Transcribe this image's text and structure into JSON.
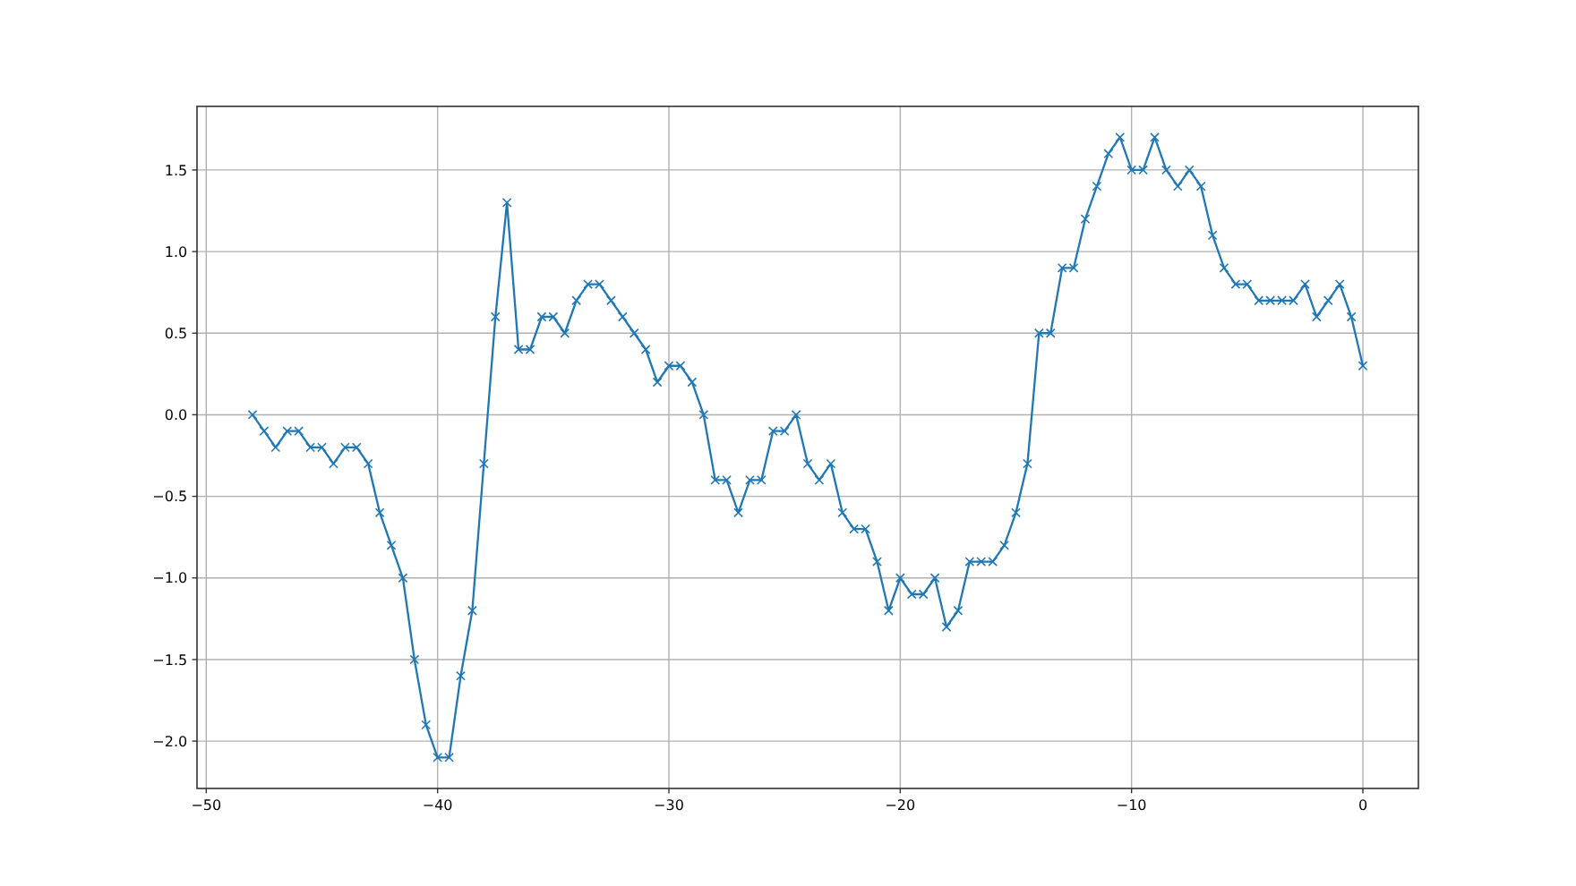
{
  "chart_data": {
    "type": "line",
    "x": [
      -48,
      -47.5,
      -47,
      -46.5,
      -46,
      -45.5,
      -45,
      -44.5,
      -44,
      -43.5,
      -43,
      -42.5,
      -42,
      -41.5,
      -41,
      -40.5,
      -40,
      -39.5,
      -39,
      -38.5,
      -38,
      -37.5,
      -37,
      -36.5,
      -36,
      -35.5,
      -35,
      -34.5,
      -34,
      -33.5,
      -33,
      -32.5,
      -32,
      -31.5,
      -31,
      -30.5,
      -30,
      -29.5,
      -29,
      -28.5,
      -28,
      -27.5,
      -27,
      -26.5,
      -26,
      -25.5,
      -25,
      -24.5,
      -24,
      -23.5,
      -23,
      -22.5,
      -22,
      -21.5,
      -21,
      -20.5,
      -20,
      -19.5,
      -19,
      -18.5,
      -18,
      -17.5,
      -17,
      -16.5,
      -16,
      -15.5,
      -15,
      -14.5,
      -14,
      -13.5,
      -13,
      -12.5,
      -12,
      -11.5,
      -11,
      -10.5,
      -10,
      -9.5,
      -9,
      -8.5,
      -8,
      -7.5,
      -7,
      -6.5,
      -6,
      -5.5,
      -5,
      -4.5,
      -4,
      -3.5,
      -3,
      -2.5,
      -2,
      -1.5,
      -1,
      -0.5,
      0
    ],
    "values": [
      0.0,
      -0.1,
      -0.2,
      -0.1,
      -0.1,
      -0.2,
      -0.2,
      -0.3,
      -0.2,
      -0.2,
      -0.3,
      -0.6,
      -0.8,
      -1.0,
      -1.5,
      -1.9,
      -2.1,
      -2.1,
      -1.6,
      -1.2,
      -0.3,
      0.6,
      1.3,
      0.4,
      0.4,
      0.6,
      0.6,
      0.5,
      0.7,
      0.8,
      0.8,
      0.7,
      0.6,
      0.5,
      0.4,
      0.2,
      0.3,
      0.3,
      0.2,
      0.0,
      -0.4,
      -0.4,
      -0.6,
      -0.4,
      -0.4,
      -0.1,
      -0.1,
      0.0,
      -0.3,
      -0.4,
      -0.3,
      -0.6,
      -0.7,
      -0.7,
      -0.9,
      -1.2,
      -1.0,
      -1.1,
      -1.1,
      -1.0,
      -1.3,
      -1.2,
      -0.9,
      -0.9,
      -0.9,
      -0.8,
      -0.6,
      -0.3,
      0.5,
      0.5,
      0.9,
      0.9,
      1.2,
      1.4,
      1.6,
      1.7,
      1.5,
      1.5,
      1.7,
      1.5,
      1.4,
      1.5,
      1.4,
      1.1,
      0.9,
      0.8,
      0.8,
      0.7,
      0.7,
      0.7,
      0.7,
      0.8,
      0.6,
      0.7,
      0.8,
      0.6,
      0.3
    ],
    "color": "#1f77b4",
    "marker": "cross",
    "line_style": "solid",
    "grid": true,
    "xlim": [
      -50.4,
      2.4
    ],
    "ylim": [
      -2.29,
      1.89
    ],
    "xticks": [
      {
        "value": -50,
        "label": "−50"
      },
      {
        "value": -40,
        "label": "−40"
      },
      {
        "value": -30,
        "label": "−30"
      },
      {
        "value": -20,
        "label": "−20"
      },
      {
        "value": -10,
        "label": "−10"
      },
      {
        "value": 0,
        "label": "0"
      }
    ],
    "yticks": [
      {
        "value": -2,
        "label": "−2.0"
      },
      {
        "value": -1.5,
        "label": "−1.5"
      },
      {
        "value": -1,
        "label": "−1.0"
      },
      {
        "value": -0.5,
        "label": "−0.5"
      },
      {
        "value": 0,
        "label": "0.0"
      },
      {
        "value": 0.5,
        "label": "0.5"
      },
      {
        "value": 1,
        "label": "1.0"
      },
      {
        "value": 1.5,
        "label": "1.5"
      }
    ]
  }
}
